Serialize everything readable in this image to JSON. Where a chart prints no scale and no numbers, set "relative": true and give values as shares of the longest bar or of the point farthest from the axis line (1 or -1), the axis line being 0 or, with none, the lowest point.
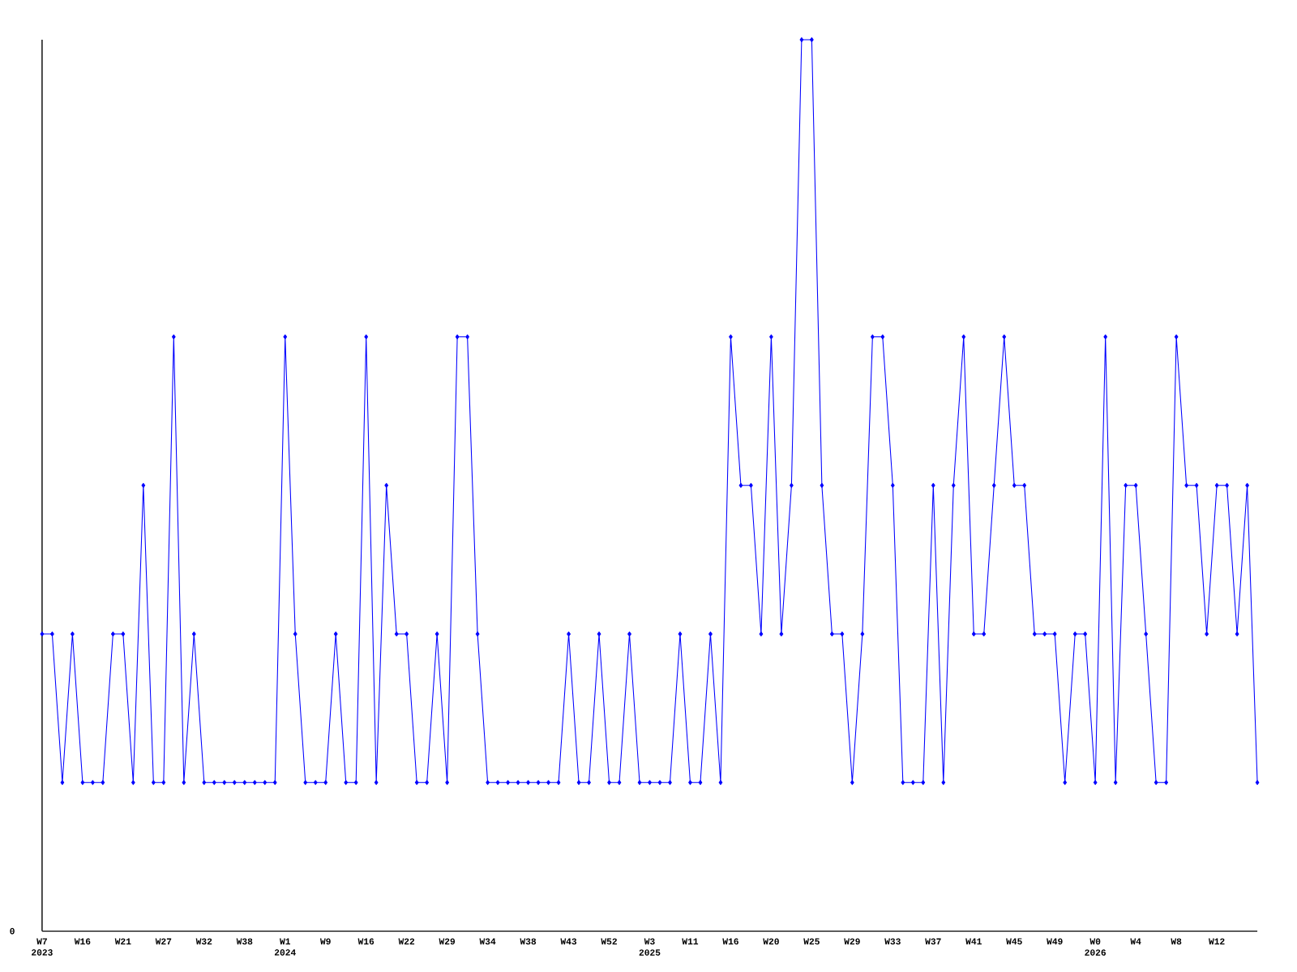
{
  "chart_data": {
    "type": "line",
    "relative": true,
    "color": "#0000ff",
    "marker": "diamond",
    "categories": [
      "W7 2023",
      null,
      null,
      null,
      "W16",
      null,
      null,
      null,
      "W21",
      null,
      null,
      null,
      "W27",
      null,
      null,
      null,
      "W32",
      null,
      null,
      null,
      "W38",
      null,
      null,
      null,
      "W1 2024",
      null,
      null,
      null,
      "W9",
      null,
      null,
      null,
      "W16",
      null,
      null,
      null,
      "W22",
      null,
      null,
      null,
      "W29",
      null,
      null,
      null,
      "W34",
      null,
      null,
      null,
      "W38",
      null,
      null,
      null,
      "W43",
      null,
      null,
      null,
      "W52",
      null,
      null,
      null,
      "W3 2025",
      null,
      null,
      null,
      "W11",
      null,
      null,
      null,
      "W16",
      null,
      null,
      null,
      "W20",
      null,
      null,
      null,
      "W25",
      null,
      null,
      null,
      "W29",
      null,
      null,
      null,
      "W33",
      null,
      null,
      null,
      "W37",
      null,
      null,
      null,
      "W41",
      null,
      null,
      null,
      "W45",
      null,
      null,
      null,
      "W49",
      null,
      null,
      null,
      "W0 2026",
      null,
      null,
      null,
      "W4",
      null,
      null,
      null,
      "W8",
      null,
      null,
      null,
      "W12",
      null,
      null,
      null,
      null
    ],
    "values": [
      0.3333,
      0.3333,
      0.1667,
      0.3333,
      0.1667,
      0.1667,
      0.1667,
      0.3333,
      0.3333,
      0.1667,
      0.5,
      0.1667,
      0.1667,
      0.6667,
      0.1667,
      0.3333,
      0.1667,
      0.1667,
      0.1667,
      0.1667,
      0.1667,
      0.1667,
      0.1667,
      0.1667,
      0.6667,
      0.3333,
      0.1667,
      0.1667,
      0.1667,
      0.3333,
      0.1667,
      0.1667,
      0.6667,
      0.1667,
      0.5,
      0.3333,
      0.3333,
      0.1667,
      0.1667,
      0.3333,
      0.1667,
      0.6667,
      0.6667,
      0.3333,
      0.1667,
      0.1667,
      0.1667,
      0.1667,
      0.1667,
      0.1667,
      0.1667,
      0.1667,
      0.3333,
      0.1667,
      0.1667,
      0.3333,
      0.1667,
      0.1667,
      0.3333,
      0.1667,
      0.1667,
      0.1667,
      0.1667,
      0.3333,
      0.1667,
      0.1667,
      0.3333,
      0.1667,
      0.6667,
      0.5,
      0.5,
      0.3333,
      0.6667,
      0.3333,
      0.5,
      1,
      1,
      0.5,
      0.3333,
      0.3333,
      0.1667,
      0.3333,
      0.6667,
      0.6667,
      0.5,
      0.1667,
      0.1667,
      0.1667,
      0.5,
      0.1667,
      0.5,
      0.6667,
      0.3333,
      0.3333,
      0.5,
      0.6667,
      0.5,
      0.5,
      0.3333,
      0.3333,
      0.3333,
      0.1667,
      0.3333,
      0.3333,
      0.1667,
      0.6667,
      0.1667,
      0.5,
      0.5,
      0.3333,
      0.1667,
      0.1667,
      0.6667,
      0.5,
      0.5,
      0.3333,
      0.5,
      0.5,
      0.3333,
      0.5,
      0.1667
    ],
    "annotations": [
      "0"
    ]
  }
}
